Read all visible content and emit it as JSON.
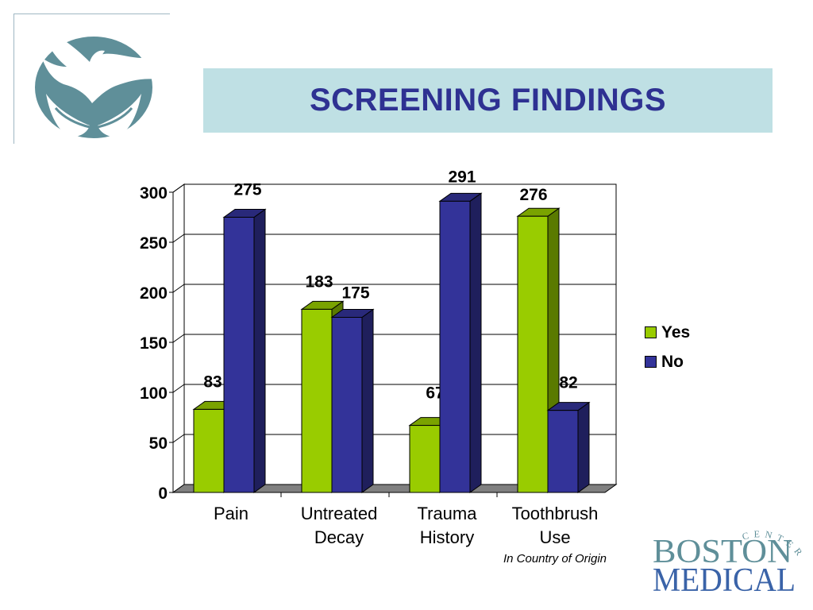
{
  "title": "SCREENING FINDINGS",
  "colors": {
    "yes": "#99cc00",
    "yes_side": "#5a7a00",
    "yes_top": "#7aa300",
    "no": "#333399",
    "no_side": "#1f1f5c",
    "no_top": "#29297a",
    "title_bg": "#bfe0e4",
    "title_text": "#2e3192",
    "logo_teal": "#5f8f99"
  },
  "chart_data": {
    "type": "bar",
    "categories": [
      "Pain",
      "Untreated Decay",
      "Trauma History",
      "Toothbrush Use"
    ],
    "category_lines": [
      [
        "Pain"
      ],
      [
        "Untreated",
        "Decay"
      ],
      [
        "Trauma",
        "History"
      ],
      [
        "Toothbrush",
        "Use"
      ]
    ],
    "category_note": "In Country of Origin",
    "series": [
      {
        "name": "Yes",
        "values": [
          83,
          183,
          67,
          276
        ]
      },
      {
        "name": "No",
        "values": [
          275,
          175,
          291,
          82
        ]
      }
    ],
    "ylim": [
      0,
      300
    ],
    "yticks": [
      0,
      50,
      100,
      150,
      200,
      250,
      300
    ],
    "grid": true,
    "legend": "right",
    "style": "3d-clustered"
  },
  "logos": {
    "bmc_line1": "BOSTON",
    "bmc_line2": "MEDICAL",
    "bmc_arc": "CENTER"
  }
}
